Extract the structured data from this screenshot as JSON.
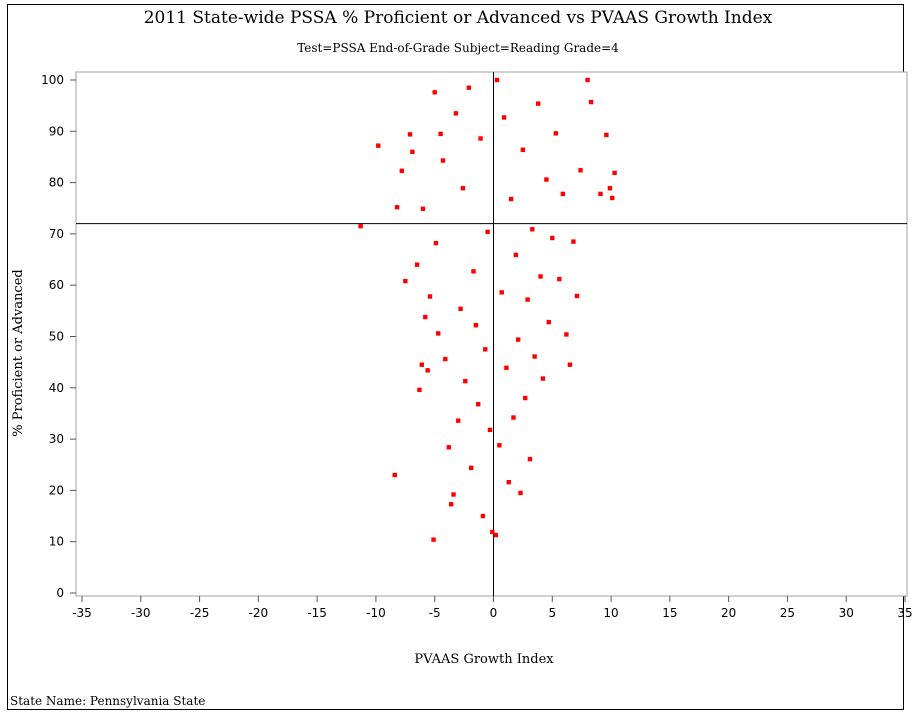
{
  "chart_data": {
    "type": "scatter",
    "title": "2011 State-wide PSSA % Proficient or Advanced vs PVAAS Growth Index",
    "subtitle": "Test=PSSA End-of-Grade Subject=Reading Grade=4",
    "xlabel": "PVAAS Growth Index",
    "ylabel": "% Proficient or Advanced",
    "xlim": [
      -35,
      35
    ],
    "ylim": [
      0,
      100
    ],
    "x_ticks": [
      "-35",
      "-30",
      "-25",
      "-20",
      "-15",
      "-10",
      "-5",
      "0",
      "5",
      "10",
      "15",
      "20",
      "25",
      "30",
      "35"
    ],
    "y_ticks": [
      "0",
      "10",
      "20",
      "30",
      "40",
      "50",
      "60",
      "70",
      "80",
      "90",
      "100"
    ],
    "reference_lines": {
      "x": 0,
      "y": 72
    },
    "marker_color": "#ff0000",
    "footnote": "State Name: Pennsylvania State",
    "points": [
      [
        -11.3,
        71.5
      ],
      [
        -9.8,
        87.2
      ],
      [
        -8.4,
        23.0
      ],
      [
        -8.2,
        75.2
      ],
      [
        -7.8,
        82.3
      ],
      [
        -7.5,
        60.8
      ],
      [
        -7.1,
        89.4
      ],
      [
        -6.9,
        86.0
      ],
      [
        -6.5,
        64.0
      ],
      [
        -6.3,
        39.6
      ],
      [
        -6.1,
        44.5
      ],
      [
        -6.0,
        74.9
      ],
      [
        -5.8,
        53.8
      ],
      [
        -5.6,
        43.4
      ],
      [
        -5.4,
        57.8
      ],
      [
        -5.1,
        10.4
      ],
      [
        -5.0,
        97.6
      ],
      [
        -4.9,
        68.2
      ],
      [
        -4.7,
        50.6
      ],
      [
        -4.5,
        89.5
      ],
      [
        -4.3,
        84.3
      ],
      [
        -4.1,
        45.6
      ],
      [
        -3.8,
        28.4
      ],
      [
        -3.6,
        17.3
      ],
      [
        -3.4,
        19.2
      ],
      [
        -3.2,
        93.5
      ],
      [
        -3.0,
        33.6
      ],
      [
        -2.8,
        55.4
      ],
      [
        -2.6,
        78.9
      ],
      [
        -2.4,
        41.3
      ],
      [
        -2.1,
        98.5
      ],
      [
        -1.9,
        24.4
      ],
      [
        -1.7,
        62.7
      ],
      [
        -1.5,
        52.2
      ],
      [
        -1.3,
        36.8
      ],
      [
        -1.1,
        88.6
      ],
      [
        -0.9,
        15.0
      ],
      [
        -0.7,
        47.5
      ],
      [
        -0.5,
        70.4
      ],
      [
        -0.3,
        31.8
      ],
      [
        -0.1,
        11.9
      ],
      [
        0.2,
        11.3
      ],
      [
        0.3,
        100.0
      ],
      [
        0.5,
        28.8
      ],
      [
        0.7,
        58.6
      ],
      [
        0.9,
        92.7
      ],
      [
        1.1,
        43.9
      ],
      [
        1.3,
        21.6
      ],
      [
        1.5,
        76.8
      ],
      [
        1.7,
        34.2
      ],
      [
        1.9,
        65.9
      ],
      [
        2.1,
        49.4
      ],
      [
        2.3,
        19.5
      ],
      [
        2.5,
        86.4
      ],
      [
        2.7,
        38.0
      ],
      [
        2.9,
        57.2
      ],
      [
        3.1,
        26.1
      ],
      [
        3.3,
        70.9
      ],
      [
        3.5,
        46.1
      ],
      [
        3.8,
        95.4
      ],
      [
        4.0,
        61.7
      ],
      [
        4.2,
        41.8
      ],
      [
        4.5,
        80.6
      ],
      [
        4.7,
        52.8
      ],
      [
        5.0,
        69.2
      ],
      [
        5.3,
        89.6
      ],
      [
        5.6,
        61.2
      ],
      [
        5.9,
        77.8
      ],
      [
        6.2,
        50.4
      ],
      [
        6.5,
        44.5
      ],
      [
        6.8,
        68.5
      ],
      [
        7.1,
        57.9
      ],
      [
        7.4,
        82.4
      ],
      [
        8.0,
        100.0
      ],
      [
        8.3,
        95.7
      ],
      [
        9.1,
        77.8
      ],
      [
        9.6,
        89.3
      ],
      [
        9.9,
        78.9
      ],
      [
        10.1,
        77.0
      ],
      [
        10.3,
        81.9
      ]
    ]
  }
}
